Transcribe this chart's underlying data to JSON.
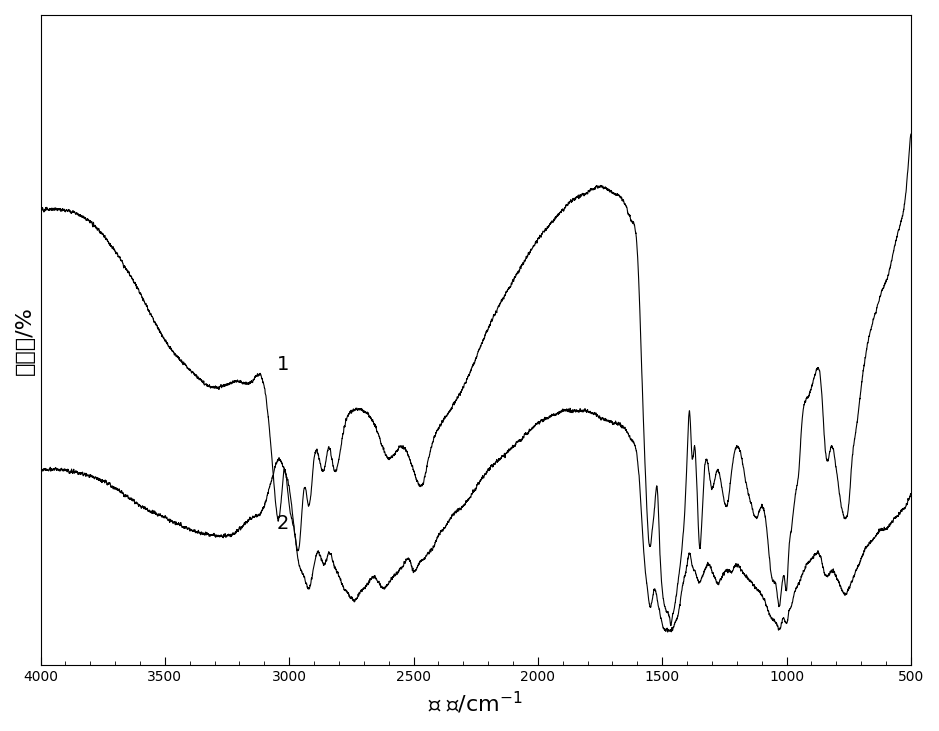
{
  "xlabel": "波 数/cm⁻¹",
  "ylabel": "透过率/%",
  "xlim": [
    4000,
    500
  ],
  "background_color": "#ffffff",
  "line_color": "#000000",
  "label1": "1",
  "label2": "2"
}
